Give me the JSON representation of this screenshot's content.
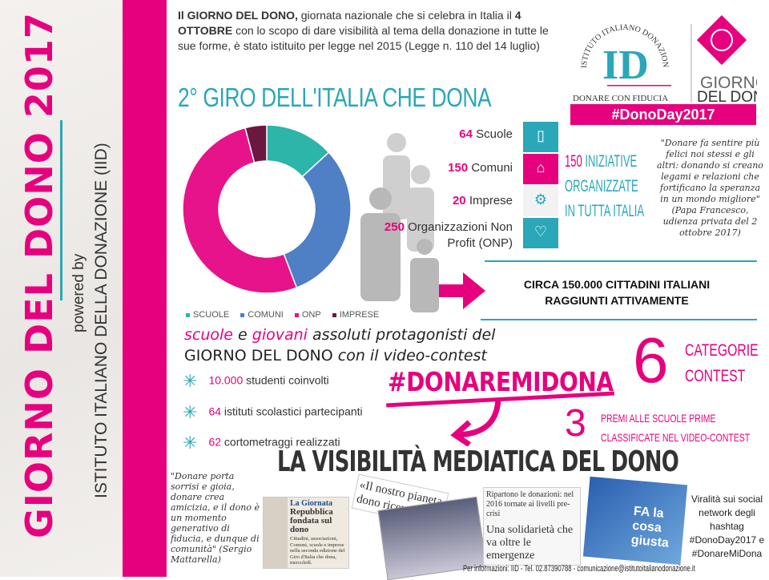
{
  "sidebar": {
    "title": "GIORNO DEL DONO 2017",
    "powered_by": "powered by",
    "institute": "ISTITUTO ITALIANO DELLA DONAZIONE (IID)"
  },
  "intro": {
    "p1_bold": "Il GIORNO DEL DONO,",
    "p1": " giornata nazionale che si celebra in Italia il ",
    "p2_bold": "4 OTTOBRE",
    "p2": " con lo scopo di dare visibilità al tema della donazione in tutte le sue forme, è stato istituito per legge nel 2015 (Legge n. 110 del 14 luglio)"
  },
  "section_title": "2° GIRO DELL'ITALIA CHE DONA",
  "logo": {
    "arc_text": "ISTITUTO ITALIANO DONAZIONE",
    "monogram": "ID",
    "tagline": "DONARE CON FIDUCIA",
    "event": "GIORNO",
    "event2": "DEL DONO",
    "hashtag": "#DonoDay2017"
  },
  "stats": [
    {
      "num": "64",
      "label": "Scuole",
      "tile": "book-icon",
      "tile_color": "#2aa7b8"
    },
    {
      "num": "150",
      "label": "Comuni",
      "tile": "townhall-icon",
      "tile_color": "#e6007e"
    },
    {
      "num": "20",
      "label": "Imprese",
      "tile": "gears-icon",
      "tile_color": "#f2f2f2"
    },
    {
      "num": "250",
      "label": "Organizzazioni Non Profit (ONP)",
      "tile": "heart-icon",
      "tile_color": "#2aa7b8"
    }
  ],
  "iniziative": {
    "num": "150",
    "l1": "INIZIATIVE",
    "l2": "ORGANIZZATE",
    "l3": "IN TUTTA ITALIA"
  },
  "papa_quote": "\"Donare fa sentire più felici noi stessi e gli altri: donando si creano legami e relazioni che fortificano la speranza in un mondo migliore\" (Papa Francesco, udienza privata del 2 ottobre 2017)",
  "citizens": {
    "l1": "CIRCA 150.000 CITTADINI ITALIANI",
    "l2": "RAGGIUNTI ATTIVAMENTE"
  },
  "chart_data": {
    "type": "pie",
    "donut": true,
    "categories": [
      "SCUOLE",
      "COMUNI",
      "ONP",
      "IMPRESE"
    ],
    "values": [
      64,
      150,
      250,
      20
    ],
    "colors": [
      "#2cb5a8",
      "#4f7fc4",
      "#e6138a",
      "#6b1740"
    ],
    "legend": "bottom"
  },
  "protagonists": {
    "w1": "scuole",
    "w2": " e ",
    "w3": "giovani",
    "w4": " assoluti protagonisti del",
    "line2a": "GIORNO DEL DONO",
    "line2b": " con il video-contest"
  },
  "bullets": [
    {
      "num": "10.000",
      "text": " studenti coinvolti"
    },
    {
      "num": "64",
      "text": " istituti scolastici partecipanti"
    },
    {
      "num": "62",
      "text": " cortometraggi realizzati"
    }
  ],
  "contest": {
    "hashtag": "#DONAREMIDONA",
    "cat_num": "6",
    "cat1": "CATEGORIE",
    "cat2": "CONTEST",
    "prize_num": "3",
    "prize1": "PREMI ALLE SCUOLE PRIME",
    "prize2": "CLASSIFICATE NEL VIDEO-CONTEST"
  },
  "media_title": "LA VISIBILITÀ MEDIATICA DEL DONO",
  "mattarella_quote": "\"Donare porta sorrisi e gioia, donare crea amicizia, e il dono è un momento generativo di fiducia, e dunque di comunità\" (Sergio Mattarella)",
  "clips": {
    "c1a": "La Giornata",
    "c1b": "Repubblica fondata sul dono",
    "c1c": "Cittadini, associazioni, Comuni, scuole e imprese nella seconda edizione del Giro d'Italia che dona, mercoledì.",
    "c2": "«Il nostro pianeta dono ricevuto da con...",
    "c3a": "Ripartono le donazioni: nel 2016 tornate ai livelli pre-crisi",
    "c3b": "Una solidarietà che va oltre le emergenze",
    "c4": "FA la cosa giusta"
  },
  "viral": "Viralità sui social network degli hashtag #DonoDay2017 e #DonareMiDona",
  "footer": "Per informazioni: IID - Tel. 02.87390788 - comunicazione@istitutoitalianodonazione.it",
  "colors": {
    "pink": "#e6007e",
    "teal": "#2aa7b8"
  }
}
